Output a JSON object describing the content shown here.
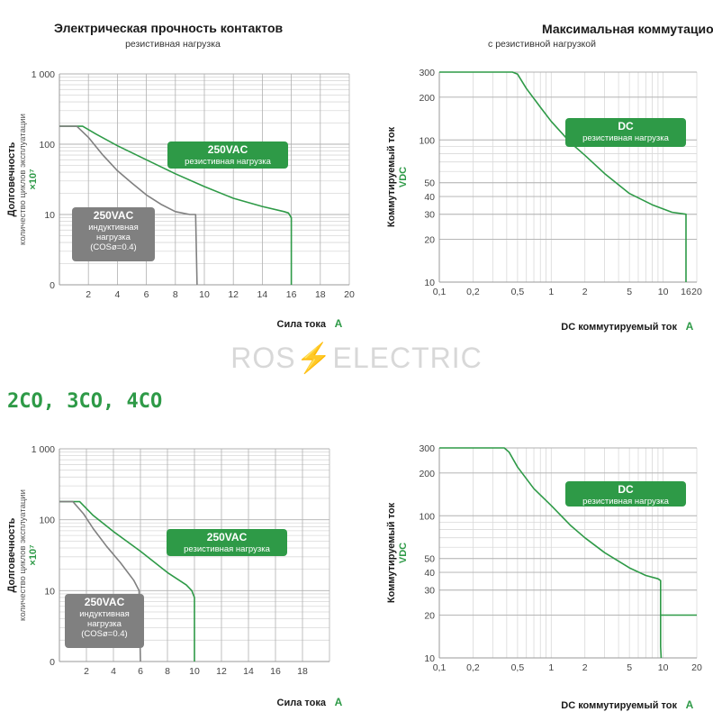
{
  "watermark": "ROS⚡ELECTRIC",
  "section_heading": "2CO, 3CO, 4CO",
  "colors": {
    "green": "#2e9a47",
    "gray": "#808080",
    "grid": "#d9d9d9",
    "grid_major": "#b0b0b0"
  },
  "chart_data": [
    {
      "id": "endurance-top",
      "type": "line",
      "title": "Электрическая прочность контактов",
      "subtitle": "резистивная нагрузка",
      "ylabel": "Долговечность",
      "ylabel_sub": "количество циклов эксплуатации",
      "ylabel_unit": "×10⁷",
      "xlabel": "Сила тока",
      "xunit": "A",
      "xlim": [
        0,
        20
      ],
      "yscale": "log",
      "ylim": [
        1,
        1000
      ],
      "x_ticks": [
        2,
        4,
        6,
        8,
        10,
        12,
        14,
        16,
        18,
        20
      ],
      "y_ticks": [
        {
          "v": 1,
          "label": "0"
        },
        {
          "v": 10,
          "label": "10"
        },
        {
          "v": 100,
          "label": "100"
        },
        {
          "v": 1000,
          "label": "1 000"
        }
      ],
      "series": [
        {
          "color": "#2e9a47",
          "points": [
            [
              0,
              180
            ],
            [
              1.6,
              180
            ],
            [
              2.5,
              140
            ],
            [
              4,
              95
            ],
            [
              6,
              60
            ],
            [
              8,
              38
            ],
            [
              10,
              25
            ],
            [
              12,
              17
            ],
            [
              14,
              13
            ],
            [
              15.5,
              11
            ],
            [
              15.8,
              10.5
            ],
            [
              16,
              9
            ],
            [
              16,
              1
            ]
          ]
        },
        {
          "color": "#808080",
          "points": [
            [
              0,
              180
            ],
            [
              1.2,
              180
            ],
            [
              2,
              125
            ],
            [
              3,
              70
            ],
            [
              4,
              42
            ],
            [
              5,
              28
            ],
            [
              6,
              19
            ],
            [
              7,
              14
            ],
            [
              8,
              11
            ],
            [
              9,
              10
            ],
            [
              9.4,
              10
            ],
            [
              9.5,
              1
            ]
          ]
        }
      ],
      "annotations": [
        {
          "kind": "green",
          "title": "250VAC",
          "lines": [
            "резистивная нагрузка"
          ]
        },
        {
          "kind": "gray",
          "title": "250VAC",
          "lines": [
            "индуктивная",
            "нагрузка",
            "(COSø=0.4)"
          ]
        }
      ]
    },
    {
      "id": "switching-top",
      "type": "line",
      "title": "Максимальная коммутационная способность",
      "subtitle": "с резистивной нагрузкой",
      "ylabel": "Коммутируемый ток",
      "ylabel_unit": "VDC",
      "xlabel": "DC коммутируемый ток",
      "xunit": "A",
      "xscale": "log",
      "xlim": [
        0.1,
        20
      ],
      "yscale": "log",
      "ylim": [
        10,
        300
      ],
      "x_ticks": [
        {
          "v": 0.1,
          "label": "0,1"
        },
        {
          "v": 0.2,
          "label": "0,2"
        },
        {
          "v": 0.5,
          "label": "0,5"
        },
        {
          "v": 1,
          "label": "1"
        },
        {
          "v": 2,
          "label": "2"
        },
        {
          "v": 5,
          "label": "5"
        },
        {
          "v": 10,
          "label": "10"
        },
        {
          "v": 16,
          "label": "16"
        },
        {
          "v": 20,
          "label": "20"
        }
      ],
      "y_ticks": [
        {
          "v": 10,
          "label": "10"
        },
        {
          "v": 20,
          "label": "20"
        },
        {
          "v": 30,
          "label": "30"
        },
        {
          "v": 40,
          "label": "40"
        },
        {
          "v": 50,
          "label": "50"
        },
        {
          "v": 100,
          "label": "100"
        },
        {
          "v": 200,
          "label": "200"
        },
        {
          "v": 300,
          "label": "300"
        }
      ],
      "series": [
        {
          "color": "#2e9a47",
          "points": [
            [
              0.1,
              300
            ],
            [
              0.45,
              300
            ],
            [
              0.5,
              290
            ],
            [
              0.6,
              230
            ],
            [
              0.8,
              170
            ],
            [
              1,
              135
            ],
            [
              1.5,
              95
            ],
            [
              2,
              78
            ],
            [
              3,
              58
            ],
            [
              5,
              42
            ],
            [
              8,
              35
            ],
            [
              12,
              31
            ],
            [
              16,
              30
            ],
            [
              16,
              10
            ]
          ]
        }
      ],
      "annotations": [
        {
          "kind": "green",
          "title": "DC",
          "lines": [
            "резистивная нагрузка"
          ]
        }
      ]
    },
    {
      "id": "endurance-bottom",
      "type": "line",
      "ylabel": "Долговечность",
      "ylabel_sub": "количество циклов эксплуатации",
      "ylabel_unit": "×10⁷",
      "xlabel": "Сила тока",
      "xunit": "A",
      "xlim": [
        0,
        20
      ],
      "yscale": "log",
      "ylim": [
        1,
        1000
      ],
      "x_ticks": [
        2,
        4,
        6,
        8,
        10,
        12,
        14,
        16,
        18
      ],
      "y_ticks": [
        {
          "v": 1,
          "label": "0"
        },
        {
          "v": 10,
          "label": "10"
        },
        {
          "v": 100,
          "label": "100"
        },
        {
          "v": 1000,
          "label": "1 000"
        }
      ],
      "series": [
        {
          "color": "#2e9a47",
          "points": [
            [
              0,
              180
            ],
            [
              1.5,
              180
            ],
            [
              2.5,
              115
            ],
            [
              4,
              68
            ],
            [
              6,
              36
            ],
            [
              8,
              18
            ],
            [
              9.4,
              12
            ],
            [
              9.8,
              10
            ],
            [
              10,
              8
            ],
            [
              10,
              1
            ]
          ]
        },
        {
          "color": "#808080",
          "points": [
            [
              0,
              180
            ],
            [
              1,
              180
            ],
            [
              1.8,
              120
            ],
            [
              2.5,
              75
            ],
            [
              3.5,
              42
            ],
            [
              4.5,
              25
            ],
            [
              5.5,
              14
            ],
            [
              5.9,
              10
            ],
            [
              6,
              1
            ]
          ]
        }
      ],
      "annotations": [
        {
          "kind": "green",
          "title": "250VAC",
          "lines": [
            "резистивная нагрузка"
          ]
        },
        {
          "kind": "gray",
          "title": "250VAC",
          "lines": [
            "индуктивная",
            "нагрузка",
            "(COSø=0.4)"
          ]
        }
      ]
    },
    {
      "id": "switching-bottom",
      "type": "line",
      "ylabel": "Коммутируемый ток",
      "ylabel_unit": "VDC",
      "xlabel": "DC коммутируемый ток",
      "xunit": "A",
      "xscale": "log",
      "xlim": [
        0.1,
        20
      ],
      "yscale": "log",
      "ylim": [
        10,
        300
      ],
      "x_ticks": [
        {
          "v": 0.1,
          "label": "0,1"
        },
        {
          "v": 0.2,
          "label": "0,2"
        },
        {
          "v": 0.5,
          "label": "0,5"
        },
        {
          "v": 1,
          "label": "1"
        },
        {
          "v": 2,
          "label": "2"
        },
        {
          "v": 5,
          "label": "5"
        },
        {
          "v": 10,
          "label": "10"
        },
        {
          "v": 20,
          "label": "20"
        }
      ],
      "y_ticks": [
        {
          "v": 10,
          "label": "10"
        },
        {
          "v": 20,
          "label": "20"
        },
        {
          "v": 30,
          "label": "30"
        },
        {
          "v": 40,
          "label": "40"
        },
        {
          "v": 50,
          "label": "50"
        },
        {
          "v": 100,
          "label": "100"
        },
        {
          "v": 200,
          "label": "200"
        },
        {
          "v": 300,
          "label": "300"
        }
      ],
      "series": [
        {
          "color": "#2e9a47",
          "points": [
            [
              0.1,
              300
            ],
            [
              0.38,
              300
            ],
            [
              0.42,
              280
            ],
            [
              0.5,
              220
            ],
            [
              0.7,
              155
            ],
            [
              1,
              118
            ],
            [
              1.5,
              85
            ],
            [
              2,
              70
            ],
            [
              3,
              55
            ],
            [
              5,
              43
            ],
            [
              7,
              38
            ],
            [
              9,
              36
            ],
            [
              9.5,
              35
            ],
            [
              9.5,
              12
            ],
            [
              9.6,
              10
            ]
          ]
        },
        {
          "color": "#2e9a47",
          "points": [
            [
              9.5,
              20
            ],
            [
              20,
              20
            ]
          ]
        }
      ],
      "annotations": [
        {
          "kind": "green",
          "title": "DC",
          "lines": [
            "резистивная нагрузка"
          ]
        }
      ]
    }
  ]
}
